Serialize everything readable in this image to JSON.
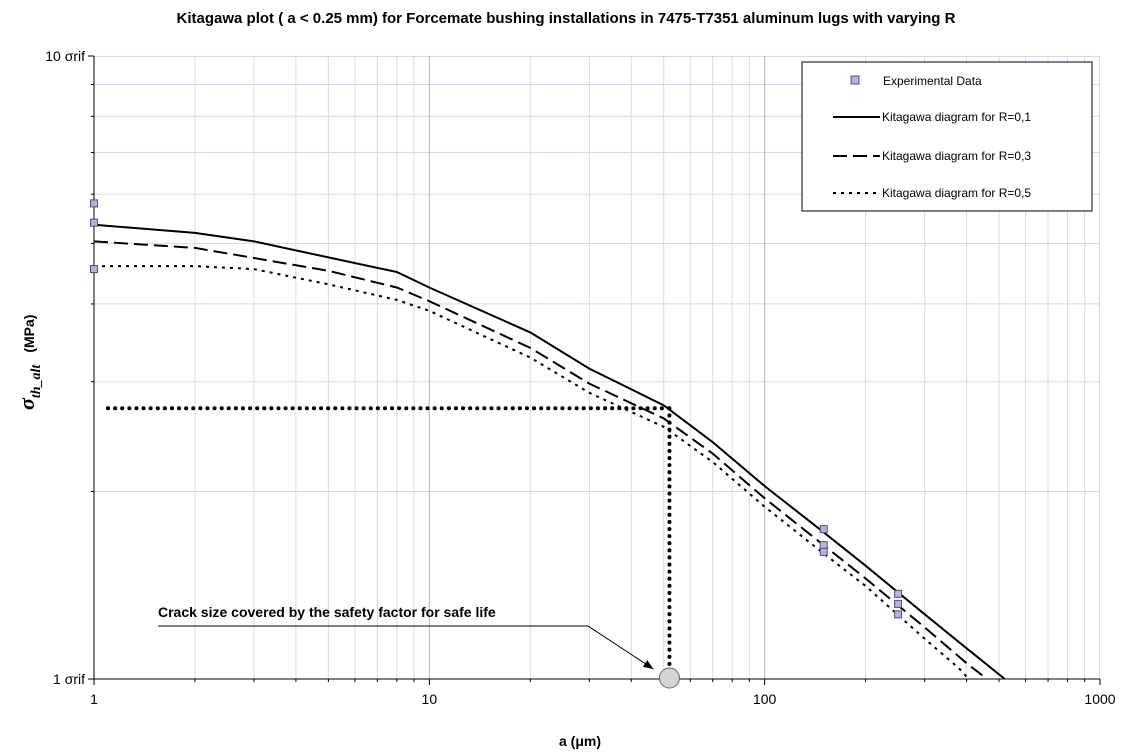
{
  "chart_data": {
    "type": "line",
    "title": "Kitagawa plot ( a < 0.25 mm) for Forcemate bushing installations in 7475-T7351 aluminum lugs with varying R",
    "xlabel": "a      (μm)",
    "ylabel": "σth_alt  (MPa)",
    "ylabel_symbol": "σ",
    "ylabel_subscript": "th_alt",
    "ylabel_unit": "(MPa)",
    "x_scale": "log",
    "y_scale": "log",
    "xlim": [
      1,
      1000
    ],
    "ylim": [
      1,
      10
    ],
    "x_ticks": [
      {
        "value": 1,
        "label": "1"
      },
      {
        "value": 10,
        "label": "10"
      },
      {
        "value": 100,
        "label": "100"
      },
      {
        "value": 1000,
        "label": "1000"
      }
    ],
    "y_ticks": [
      {
        "value": 1,
        "label": "1 σrif"
      },
      {
        "value": 10,
        "label": "10 σrif"
      }
    ],
    "grid": true,
    "legend_position": "top-right",
    "series": [
      {
        "name": "Experimental Data",
        "kind": "scatter",
        "color": "#b4b4d8",
        "x": [
          1,
          1,
          1,
          150,
          150,
          150,
          250,
          250,
          250
        ],
        "y": [
          5.8,
          5.4,
          4.55,
          1.74,
          1.64,
          1.6,
          1.37,
          1.32,
          1.27
        ]
      },
      {
        "name": "Kitagawa diagram for R=0,1",
        "kind": "line",
        "dash": "solid",
        "color": "#000000",
        "x": [
          1,
          2,
          3,
          5,
          8,
          10,
          20,
          30,
          50,
          70,
          100,
          150,
          200,
          300,
          400,
          520
        ],
        "y": [
          5.36,
          5.2,
          5.04,
          4.75,
          4.5,
          4.25,
          3.6,
          3.15,
          2.75,
          2.4,
          2.04,
          1.72,
          1.52,
          1.27,
          1.12,
          1.0
        ]
      },
      {
        "name": "Kitagawa diagram for R=0,3",
        "kind": "line",
        "dash": "dashed",
        "color": "#000000",
        "x": [
          1,
          2,
          3,
          5,
          8,
          10,
          20,
          30,
          50,
          70,
          100,
          150,
          200,
          300,
          400,
          460
        ],
        "y": [
          5.04,
          4.92,
          4.74,
          4.52,
          4.25,
          4.04,
          3.4,
          2.98,
          2.62,
          2.3,
          1.95,
          1.64,
          1.45,
          1.21,
          1.06,
          1.0
        ]
      },
      {
        "name": "Kitagawa diagram for R=0,5",
        "kind": "line",
        "dash": "dotted",
        "color": "#000000",
        "x": [
          1,
          2,
          3,
          5,
          8,
          10,
          20,
          30,
          50,
          70,
          100,
          150,
          200,
          300,
          380,
          420
        ],
        "y": [
          4.6,
          4.6,
          4.55,
          4.3,
          4.06,
          3.9,
          3.28,
          2.88,
          2.54,
          2.23,
          1.89,
          1.59,
          1.41,
          1.16,
          1.04,
          0.98
        ]
      }
    ],
    "reference_lines": {
      "horizontal": {
        "y": 2.72,
        "x_from": 1,
        "x_to": 52
      },
      "vertical": {
        "x": 52,
        "y_from": 1,
        "y_to": 2.72
      }
    },
    "marker_point": {
      "x": 52,
      "y": 1
    },
    "annotation": {
      "text": "Crack size covered by the safety factor for safe life",
      "x": 52,
      "y": 1
    }
  },
  "colors": {
    "major_grid": "#c4aad6",
    "minor_grid": "#d8d8ee",
    "marker_fill": "#b4b4d8",
    "marker_stroke": "#50507a",
    "circle_fill": "#d4d4d4"
  }
}
